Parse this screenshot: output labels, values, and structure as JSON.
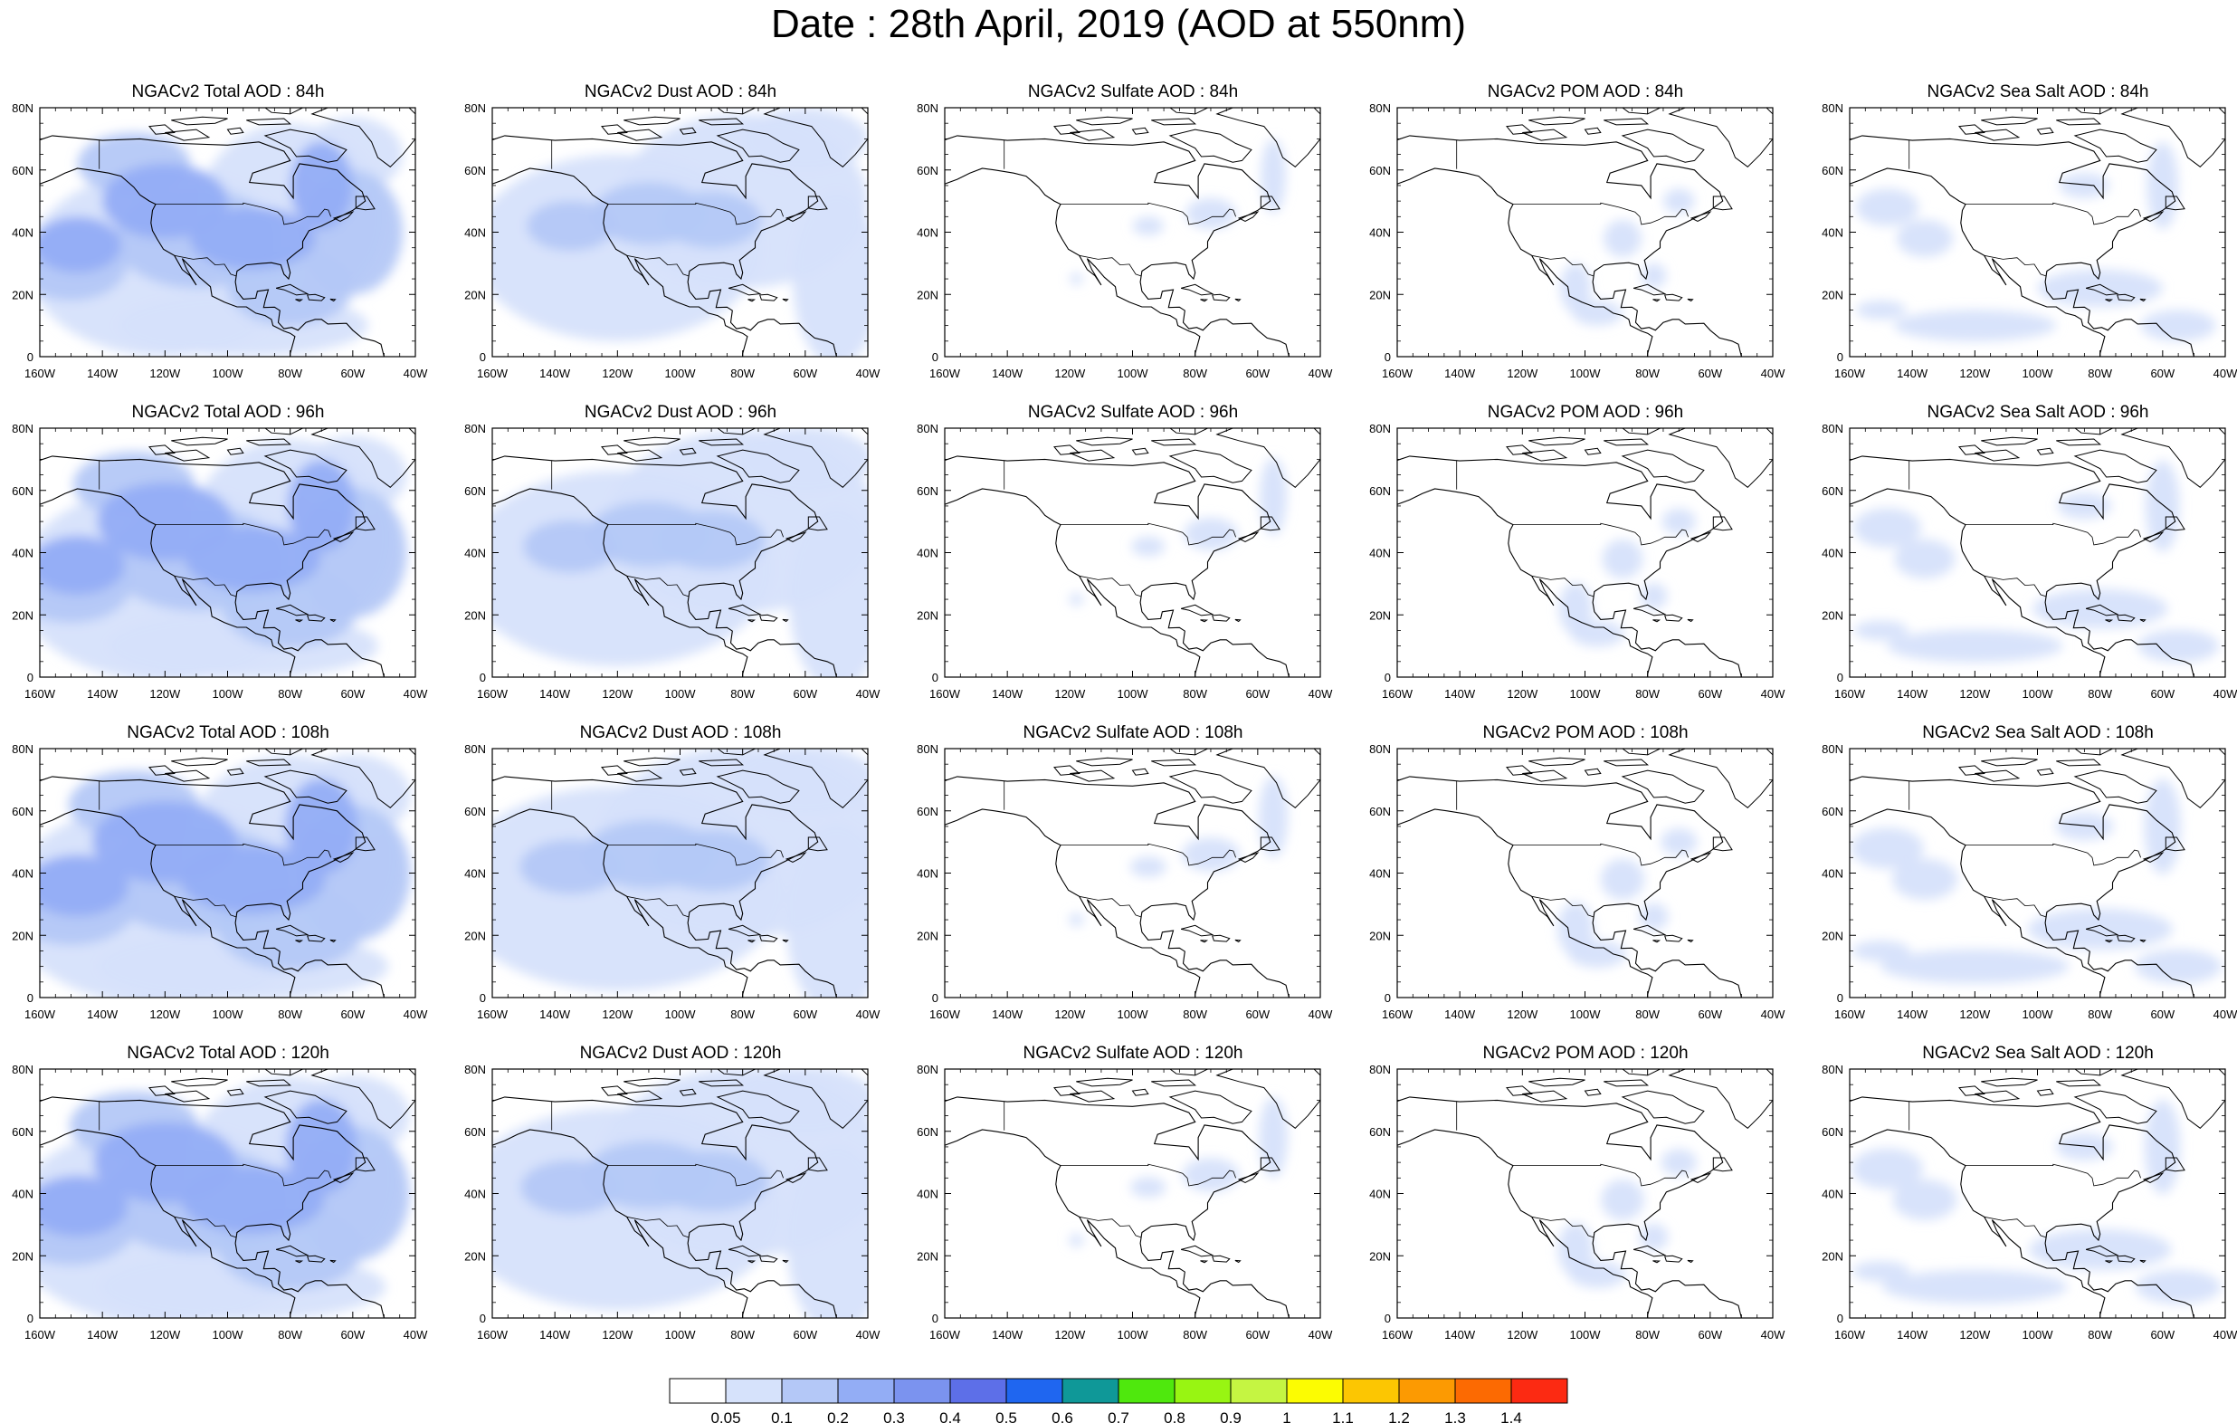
{
  "title": "Date : 28th April, 2019 (AOD at 550nm)",
  "axes": {
    "lat_ticks": [
      "0",
      "20N",
      "40N",
      "60N",
      "80N"
    ],
    "lon_ticks": [
      "160W",
      "140W",
      "120W",
      "100W",
      "80W",
      "60W",
      "40W"
    ]
  },
  "panels": [
    [
      "NGACv2 Total AOD : 84h",
      "NGACv2 Dust AOD : 84h",
      "NGACv2 Sulfate AOD : 84h",
      "NGACv2 POM AOD : 84h",
      "NGACv2 Sea Salt AOD : 84h"
    ],
    [
      "NGACv2 Total AOD : 96h",
      "NGACv2 Dust AOD : 96h",
      "NGACv2 Sulfate AOD : 96h",
      "NGACv2 POM AOD : 96h",
      "NGACv2 Sea Salt AOD : 96h"
    ],
    [
      "NGACv2 Total AOD : 108h",
      "NGACv2 Dust AOD : 108h",
      "NGACv2 Sulfate AOD : 108h",
      "NGACv2 POM AOD : 108h",
      "NGACv2 Sea Salt AOD : 108h"
    ],
    [
      "NGACv2 Total AOD : 120h",
      "NGACv2 Dust AOD : 120h",
      "NGACv2 Sulfate AOD : 120h",
      "NGACv2 POM AOD : 120h",
      "NGACv2 Sea Salt  AOD : 120h"
    ]
  ],
  "colorbar": {
    "labels": [
      "0.05",
      "0.1",
      "0.2",
      "0.3",
      "0.4",
      "0.5",
      "0.6",
      "0.7",
      "0.8",
      "0.9",
      "1",
      "1.1",
      "1.2",
      "1.3",
      "1.4"
    ],
    "colors": [
      "#ffffff",
      "#d6e2fb",
      "#b4c8f7",
      "#93adf5",
      "#7b93ef",
      "#5d6fe8",
      "#1f66f0",
      "#0f9898",
      "#4fe80d",
      "#98f512",
      "#c5f542",
      "#fcfc02",
      "#fcc602",
      "#fc9a02",
      "#fc6a02",
      "#fc2a12"
    ]
  }
}
